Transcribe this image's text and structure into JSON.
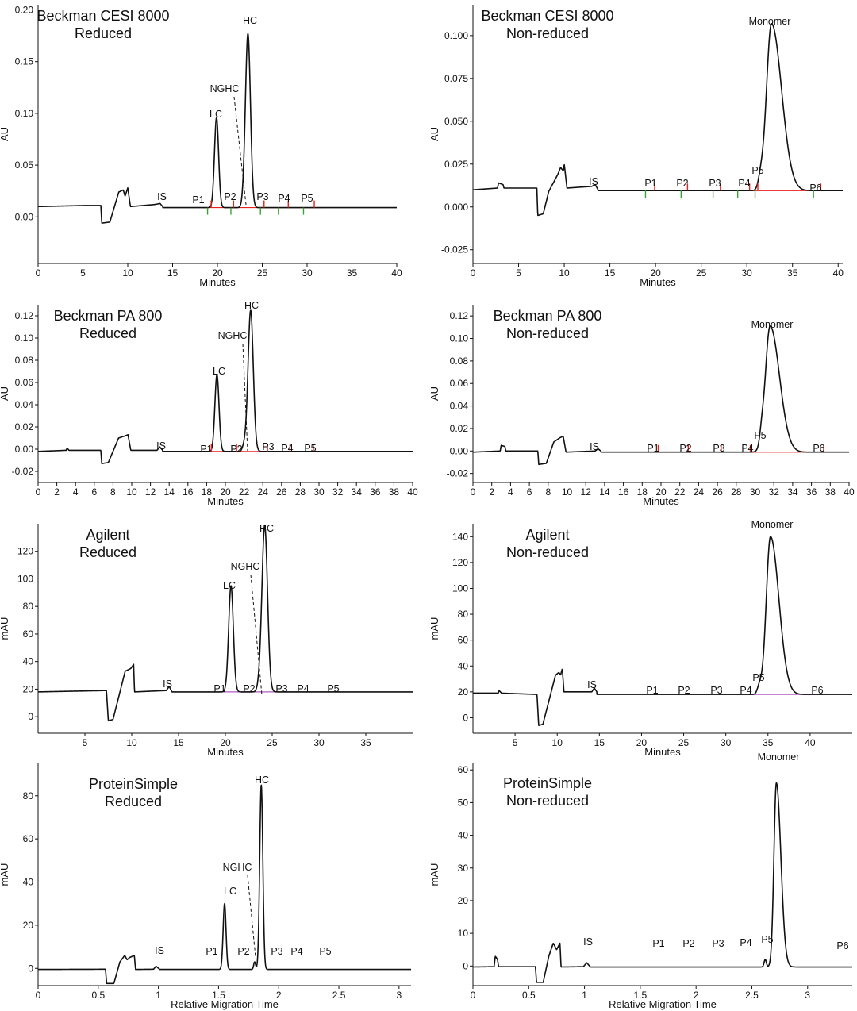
{
  "colors": {
    "trace": "#111111",
    "integration": "#e8211d",
    "marker_green": "#3aa335",
    "marker_red": "#e8211d",
    "agilent_baseline": "#b05bc4"
  },
  "chart_data": [
    {
      "type": "line",
      "title": [
        "Beckman CESI 8000",
        "Reduced"
      ],
      "xlabel": "Minutes",
      "ylabel": "AU",
      "xlim": [
        0,
        40
      ],
      "ylim": [
        -0.045,
        0.205
      ],
      "xticks": [
        0,
        5,
        10,
        15,
        20,
        25,
        30,
        35,
        40
      ],
      "yticks": [
        0.0,
        0.05,
        0.1,
        0.15,
        0.2
      ],
      "ytick_labels": [
        "0.00",
        "0.05",
        "0.10",
        "0.15",
        "0.20"
      ],
      "baseline": 0.009,
      "segments": [
        [
          0,
          0.01
        ],
        [
          5,
          0.011
        ],
        [
          7,
          0.011
        ],
        [
          7.1,
          -0.006
        ],
        [
          8,
          -0.005
        ],
        [
          9,
          0.024
        ],
        [
          9.5,
          0.026
        ],
        [
          9.7,
          0.02
        ],
        [
          10,
          0.028
        ],
        [
          10.3,
          0.01
        ],
        [
          13,
          0.012
        ],
        [
          13.6,
          0.013
        ],
        [
          13.9,
          0.01
        ]
      ],
      "peaks": [
        {
          "label": "IS",
          "x": 13.7,
          "y": 0.012,
          "marker_red": false,
          "marker_green": false
        },
        {
          "label": "P1",
          "x": 18.7,
          "y": 0.01,
          "marker_red": 19.3,
          "marker_green": 18.9
        },
        {
          "label": "LC",
          "x": 19.9,
          "y": 0.096,
          "width": 0.23
        },
        {
          "label": "P2",
          "x": 21.3,
          "y": 0.01,
          "marker_red": 21.8,
          "marker_green": 21.5
        },
        {
          "label": "NGHC",
          "x": 22.9,
          "y": 0.012,
          "width": 0.18
        },
        {
          "label": "HC",
          "x": 23.4,
          "y": 0.177,
          "width": 0.28
        },
        {
          "label": "P3",
          "x": 24.7,
          "y": 0.011,
          "marker_red": 25.2,
          "marker_green": 24.8
        },
        {
          "label": "P4",
          "x": 27.5,
          "y": 0.011,
          "marker_red": 27.9,
          "marker_green": 26.8
        },
        {
          "label": "P5",
          "x": 30.5,
          "y": 0.01,
          "marker_red": 30.8,
          "marker_green": 29.6
        }
      ]
    },
    {
      "type": "line",
      "title": [
        "Beckman CESI 8000",
        "Non-reduced"
      ],
      "xlabel": "Minutes",
      "ylabel": "AU",
      "xlim": [
        0,
        40.5
      ],
      "ylim": [
        -0.033,
        0.118
      ],
      "xticks": [
        0,
        5,
        10,
        15,
        20,
        25,
        30,
        35,
        40
      ],
      "yticks": [
        -0.025,
        0.0,
        0.025,
        0.05,
        0.075,
        0.1
      ],
      "ytick_labels": [
        "-0.025",
        "0.000",
        "0.025",
        "0.050",
        "0.075",
        "0.100"
      ],
      "baseline": 0.0095,
      "segments": [
        [
          0,
          0.01
        ],
        [
          2.7,
          0.011
        ],
        [
          2.8,
          0.014
        ],
        [
          3.3,
          0.013
        ],
        [
          3.4,
          0.011
        ],
        [
          7,
          0.011
        ],
        [
          7.1,
          -0.005
        ],
        [
          7.7,
          -0.004
        ],
        [
          8.3,
          0.009
        ],
        [
          9.3,
          0.019
        ],
        [
          9.6,
          0.023
        ],
        [
          9.9,
          0.021
        ],
        [
          10,
          0.025
        ],
        [
          10.3,
          0.011
        ],
        [
          13,
          0.012
        ],
        [
          13.4,
          0.013
        ],
        [
          13.7,
          0.01
        ]
      ],
      "peaks": [
        {
          "label": "IS",
          "x": 13.3,
          "y": 0.012
        },
        {
          "label": "P1",
          "x": 19.3,
          "y": 0.011,
          "marker_red": 19.9,
          "marker_green": 18.9
        },
        {
          "label": "P2",
          "x": 23.2,
          "y": 0.01,
          "marker_red": 23.5,
          "marker_green": 22.8
        },
        {
          "label": "P3",
          "x": 26.7,
          "y": 0.011,
          "marker_red": 27.1,
          "marker_green": 26.3
        },
        {
          "label": "P4",
          "x": 29.6,
          "y": 0.011,
          "marker_red": 30.3,
          "marker_green": 29.0
        },
        {
          "label": "P5",
          "x": 31.5,
          "y": 0.015,
          "width": 0.25,
          "marker_red": 31.2,
          "marker_green": 30.9
        },
        {
          "label": "Monomer",
          "x": 32.7,
          "y": 0.107,
          "width": 0.55,
          "tail": 1.1
        },
        {
          "label": "P6",
          "x": 37.5,
          "y": 0.01,
          "marker_red": 38.1,
          "marker_green": 37.3
        }
      ]
    },
    {
      "type": "line",
      "title": [
        "Beckman PA 800",
        "Reduced"
      ],
      "xlabel": "Minutes",
      "ylabel": "AU",
      "xlim": [
        0,
        40
      ],
      "ylim": [
        -0.03,
        0.13
      ],
      "xticks": [
        0,
        2,
        4,
        6,
        8,
        10,
        12,
        14,
        16,
        18,
        20,
        22,
        24,
        26,
        28,
        30,
        32,
        34,
        36,
        38,
        40
      ],
      "yticks": [
        -0.02,
        0.0,
        0.02,
        0.04,
        0.06,
        0.08,
        0.1,
        0.12
      ],
      "ytick_labels": [
        "-0.02",
        "0.00",
        "0.02",
        "0.04",
        "0.06",
        "0.08",
        "0.10",
        "0.12"
      ],
      "baseline": -0.002,
      "segments": [
        [
          0,
          -0.002
        ],
        [
          3,
          -0.001
        ],
        [
          3.1,
          0.001
        ],
        [
          3.3,
          -0.001
        ],
        [
          6.7,
          -0.001
        ],
        [
          6.8,
          -0.013
        ],
        [
          7.5,
          -0.012
        ],
        [
          8.6,
          0.01
        ],
        [
          9.3,
          0.012
        ],
        [
          9.6,
          0.013
        ],
        [
          9.9,
          -0.001
        ],
        [
          12.7,
          -0.001
        ],
        [
          13,
          0.002
        ],
        [
          13.3,
          -0.001
        ]
      ],
      "peaks": [
        {
          "label": "IS",
          "x": 13.0,
          "y": 0.002
        },
        {
          "label": "P1",
          "x": 18.2,
          "y": 0.0,
          "marker_red": 18.5
        },
        {
          "label": "LC",
          "x": 19.1,
          "y": 0.067,
          "width": 0.22
        },
        {
          "label": "P2",
          "x": 20.9,
          "y": 0.0,
          "marker_red": 21.2
        },
        {
          "label": "NGHC",
          "x": 22.0,
          "y": 0.003,
          "width": 0.18
        },
        {
          "label": "HC",
          "x": 22.7,
          "y": 0.125,
          "width": 0.28
        },
        {
          "label": "P3",
          "x": 24.3,
          "y": 0.0,
          "marker_red": 24.5
        },
        {
          "label": "P4",
          "x": 26.6,
          "y": 0.0,
          "marker_red": 26.9
        },
        {
          "label": "P5",
          "x": 29.1,
          "y": 0.0,
          "marker_red": 29.4
        }
      ]
    },
    {
      "type": "line",
      "title": [
        "Beckman PA 800",
        "Non-reduced"
      ],
      "xlabel": "Minutes",
      "ylabel": "AU",
      "xlim": [
        0,
        40
      ],
      "ylim": [
        -0.028,
        0.13
      ],
      "xticks": [
        0,
        2,
        4,
        6,
        8,
        10,
        12,
        14,
        16,
        18,
        20,
        22,
        24,
        26,
        28,
        30,
        32,
        34,
        36,
        38,
        40
      ],
      "yticks": [
        -0.02,
        0.0,
        0.02,
        0.04,
        0.06,
        0.08,
        0.1,
        0.12
      ],
      "ytick_labels": [
        "-0.02",
        "0.00",
        "0.02",
        "0.04",
        "0.06",
        "0.08",
        "0.10",
        "0.12"
      ],
      "baseline": -0.001,
      "segments": [
        [
          0,
          -0.001
        ],
        [
          2.9,
          0.0
        ],
        [
          3.0,
          0.005
        ],
        [
          3.4,
          0.004
        ],
        [
          3.5,
          0.0
        ],
        [
          6.9,
          0.0
        ],
        [
          7.0,
          -0.012
        ],
        [
          7.8,
          -0.011
        ],
        [
          8.6,
          0.008
        ],
        [
          9.3,
          0.012
        ],
        [
          9.6,
          0.013
        ],
        [
          9.9,
          -0.001
        ],
        [
          13.0,
          0.0
        ],
        [
          13.3,
          0.002
        ],
        [
          13.6,
          0.0
        ]
      ],
      "peaks": [
        {
          "label": "IS",
          "x": 13.3,
          "y": 0.002
        },
        {
          "label": "P1",
          "x": 19.3,
          "y": 0.001,
          "marker_red": 19.7
        },
        {
          "label": "P2",
          "x": 22.5,
          "y": 0.001,
          "marker_red": 22.9
        },
        {
          "label": "P3",
          "x": 26.0,
          "y": 0.001,
          "marker_red": 26.4
        },
        {
          "label": "P4",
          "x": 28.6,
          "y": 0.001,
          "marker_red": 29.5
        },
        {
          "label": "P5",
          "x": 30.7,
          "y": 0.008,
          "width": 0.2
        },
        {
          "label": "Monomer",
          "x": 31.6,
          "y": 0.111,
          "width": 0.5,
          "tail": 1.0
        },
        {
          "label": "P6",
          "x": 37.0,
          "y": 0.0,
          "marker_red": 37.3
        }
      ]
    },
    {
      "type": "line",
      "title": [
        "Agilent",
        "Reduced"
      ],
      "xlabel": "Minutes",
      "ylabel": "mAU",
      "xlim": [
        0,
        40
      ],
      "ylim": [
        -12,
        140
      ],
      "xticks": [
        5,
        10,
        15,
        20,
        25,
        30,
        35
      ],
      "yticks": [
        0,
        20,
        40,
        60,
        80,
        100,
        120
      ],
      "ytick_labels": [
        "0",
        "20",
        "40",
        "60",
        "80",
        "100",
        "120"
      ],
      "baseline": 18,
      "segments": [
        [
          0,
          18
        ],
        [
          7.3,
          19
        ],
        [
          7.5,
          -3
        ],
        [
          8.0,
          -2
        ],
        [
          9.3,
          33
        ],
        [
          9.9,
          35
        ],
        [
          10.2,
          38
        ],
        [
          10.3,
          18
        ],
        [
          13.7,
          19
        ],
        [
          14.0,
          22
        ],
        [
          14.3,
          18
        ]
      ],
      "peaks": [
        {
          "label": "IS",
          "x": 14.0,
          "y": 21
        },
        {
          "label": "P1",
          "x": 19.6,
          "y": 18
        },
        {
          "label": "LC",
          "x": 20.6,
          "y": 95,
          "width": 0.25
        },
        {
          "label": "P2",
          "x": 22.4,
          "y": 18
        },
        {
          "label": "NGHC",
          "x": 23.6,
          "y": 21,
          "width": 0.2
        },
        {
          "label": "HC",
          "x": 24.2,
          "y": 139,
          "width": 0.3
        },
        {
          "label": "P3",
          "x": 25.8,
          "y": 18
        },
        {
          "label": "P4",
          "x": 28.2,
          "y": 19
        },
        {
          "label": "P5",
          "x": 31.1,
          "y": 19
        }
      ]
    },
    {
      "type": "line",
      "title": [
        "Agilent",
        "Non-reduced"
      ],
      "xlabel": "Minutes",
      "ylabel": "mAU",
      "xlim": [
        0,
        45
      ],
      "ylim": [
        -12,
        150
      ],
      "xticks": [
        5,
        10,
        15,
        20,
        25,
        30,
        35,
        40
      ],
      "yticks": [
        0,
        20,
        40,
        60,
        80,
        100,
        120,
        140
      ],
      "ytick_labels": [
        "0",
        "20",
        "40",
        "60",
        "80",
        "100",
        "120",
        "140"
      ],
      "baseline": 18,
      "segments": [
        [
          0,
          19
        ],
        [
          3,
          19
        ],
        [
          3.1,
          21
        ],
        [
          3.4,
          19
        ],
        [
          7.6,
          18
        ],
        [
          7.8,
          -6
        ],
        [
          8.3,
          -5
        ],
        [
          9.8,
          33
        ],
        [
          10.2,
          35
        ],
        [
          10.4,
          33
        ],
        [
          10.6,
          38
        ],
        [
          10.8,
          20
        ],
        [
          14.1,
          20
        ],
        [
          14.4,
          23
        ],
        [
          14.7,
          20
        ]
      ],
      "peaks": [
        {
          "label": "IS",
          "x": 14.4,
          "y": 22
        },
        {
          "label": "P1",
          "x": 21.3,
          "y": 18
        },
        {
          "label": "P2",
          "x": 24.8,
          "y": 18
        },
        {
          "label": "P3",
          "x": 28.4,
          "y": 18
        },
        {
          "label": "P4",
          "x": 31.6,
          "y": 19
        },
        {
          "label": "P5",
          "x": 34.0,
          "y": 24,
          "width": 0.25
        },
        {
          "label": "Monomer",
          "x": 35.3,
          "y": 140,
          "width": 0.5,
          "tail": 1.0
        },
        {
          "label": "P6",
          "x": 40.8,
          "y": 18
        }
      ]
    },
    {
      "type": "line",
      "title": [
        "ProteinSimple",
        "Reduced"
      ],
      "xlabel": "Relative Migration Time",
      "ylabel": "mAU",
      "xlim": [
        0,
        3.1
      ],
      "ylim": [
        -8,
        95
      ],
      "xticks": [
        0,
        0.5,
        1,
        1.5,
        2,
        2.5,
        3
      ],
      "xtick_labels": [
        "0",
        "0.5",
        "1",
        "1.5",
        "2",
        "2.5",
        "3"
      ],
      "yticks": [
        0,
        20,
        40,
        60,
        80
      ],
      "ytick_labels": [
        "0",
        "20",
        "40",
        "60",
        "80"
      ],
      "baseline": -0.5,
      "segments": [
        [
          0,
          -0.5
        ],
        [
          0.56,
          -0.4
        ],
        [
          0.57,
          -7
        ],
        [
          0.63,
          -7
        ],
        [
          0.68,
          3
        ],
        [
          0.72,
          6
        ],
        [
          0.74,
          4
        ],
        [
          0.76,
          5
        ],
        [
          0.8,
          6
        ],
        [
          0.81,
          -0.5
        ],
        [
          0.96,
          -0.4
        ],
        [
          0.98,
          1
        ],
        [
          1.01,
          -0.4
        ]
      ],
      "peaks": [
        {
          "label": "IS",
          "x": 0.98,
          "y": 1
        },
        {
          "label": "P1",
          "x": 1.43,
          "y": 0
        },
        {
          "label": "LC",
          "x": 1.55,
          "y": 30,
          "width": 0.012
        },
        {
          "label": "P2",
          "x": 1.68,
          "y": 0
        },
        {
          "label": "NGHC",
          "x": 1.8,
          "y": 3,
          "width": 0.008
        },
        {
          "label": "HC",
          "x": 1.855,
          "y": 85,
          "width": 0.013
        },
        {
          "label": "P3",
          "x": 1.95,
          "y": 0
        },
        {
          "label": "P4",
          "x": 2.13,
          "y": 0
        },
        {
          "label": "P5",
          "x": 2.35,
          "y": 0
        }
      ]
    },
    {
      "type": "line",
      "title": [
        "ProteinSimple",
        "Non-reduced"
      ],
      "xlabel": "Relative Migration Time",
      "ylabel": "mAU",
      "xlim": [
        0,
        3.4
      ],
      "ylim": [
        -6,
        62
      ],
      "xticks": [
        0,
        0.5,
        1,
        1.5,
        2,
        2.5,
        3
      ],
      "xtick_labels": [
        "0",
        "0.5",
        "1",
        "1.5",
        "2",
        "2.5",
        "3"
      ],
      "yticks": [
        0,
        10,
        20,
        30,
        40,
        50,
        60
      ],
      "ytick_labels": [
        "0",
        "10",
        "20",
        "30",
        "40",
        "50",
        "60"
      ],
      "baseline": -0.3,
      "segments": [
        [
          0,
          -0.3
        ],
        [
          0.19,
          -0.2
        ],
        [
          0.2,
          3
        ],
        [
          0.22,
          2
        ],
        [
          0.23,
          -0.2
        ],
        [
          0.56,
          -0.2
        ],
        [
          0.57,
          -5
        ],
        [
          0.63,
          -5
        ],
        [
          0.68,
          3
        ],
        [
          0.72,
          7
        ],
        [
          0.75,
          5
        ],
        [
          0.78,
          7
        ],
        [
          0.79,
          -0.3
        ],
        [
          0.99,
          -0.2
        ],
        [
          1.02,
          1
        ],
        [
          1.05,
          -0.2
        ]
      ],
      "peaks": [
        {
          "label": "IS",
          "x": 1.02,
          "y": 1
        },
        {
          "label": "P1",
          "x": 1.64,
          "y": 0.3
        },
        {
          "label": "P2",
          "x": 1.9,
          "y": 0.3
        },
        {
          "label": "P3",
          "x": 2.15,
          "y": 0.5
        },
        {
          "label": "P4",
          "x": 2.4,
          "y": 0.5
        },
        {
          "label": "P5",
          "x": 2.62,
          "y": 2,
          "width": 0.01
        },
        {
          "label": "Monomer",
          "x": 2.72,
          "y": 56,
          "width": 0.022,
          "tail": 0.04
        },
        {
          "label": "P6",
          "x": 3.33,
          "y": 0.3
        }
      ]
    }
  ]
}
